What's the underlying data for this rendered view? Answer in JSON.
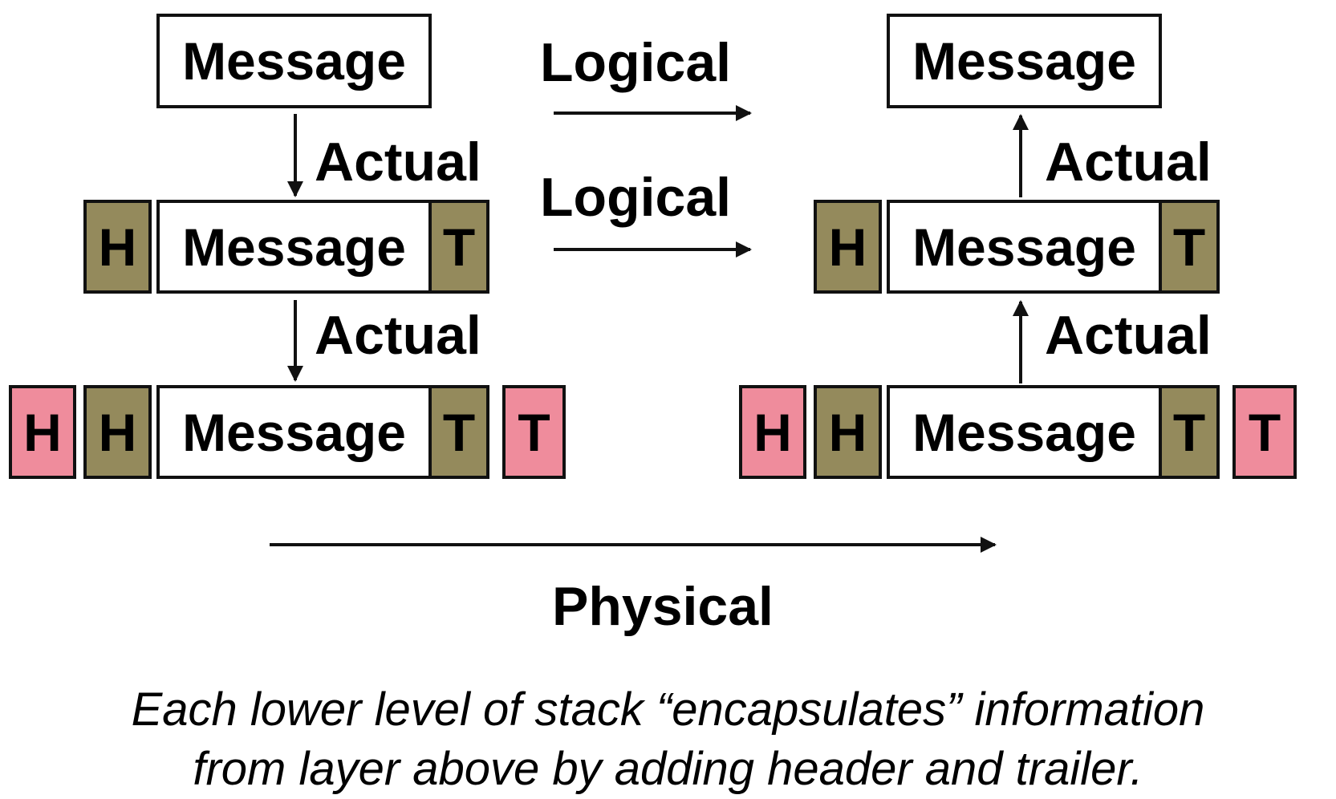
{
  "diagram": {
    "message_label": "Message",
    "header_label": "H",
    "trailer_label": "T",
    "actual_label": "Actual",
    "logical_label": "Logical",
    "physical_label": "Physical"
  },
  "caption": {
    "line1": "Each lower level of stack “encapsulates” information",
    "line2": "from layer above by adding header and trailer."
  },
  "colors": {
    "inner_layer": "#948a5c",
    "outer_layer": "#ef8c9c",
    "message": "#ffffff"
  }
}
